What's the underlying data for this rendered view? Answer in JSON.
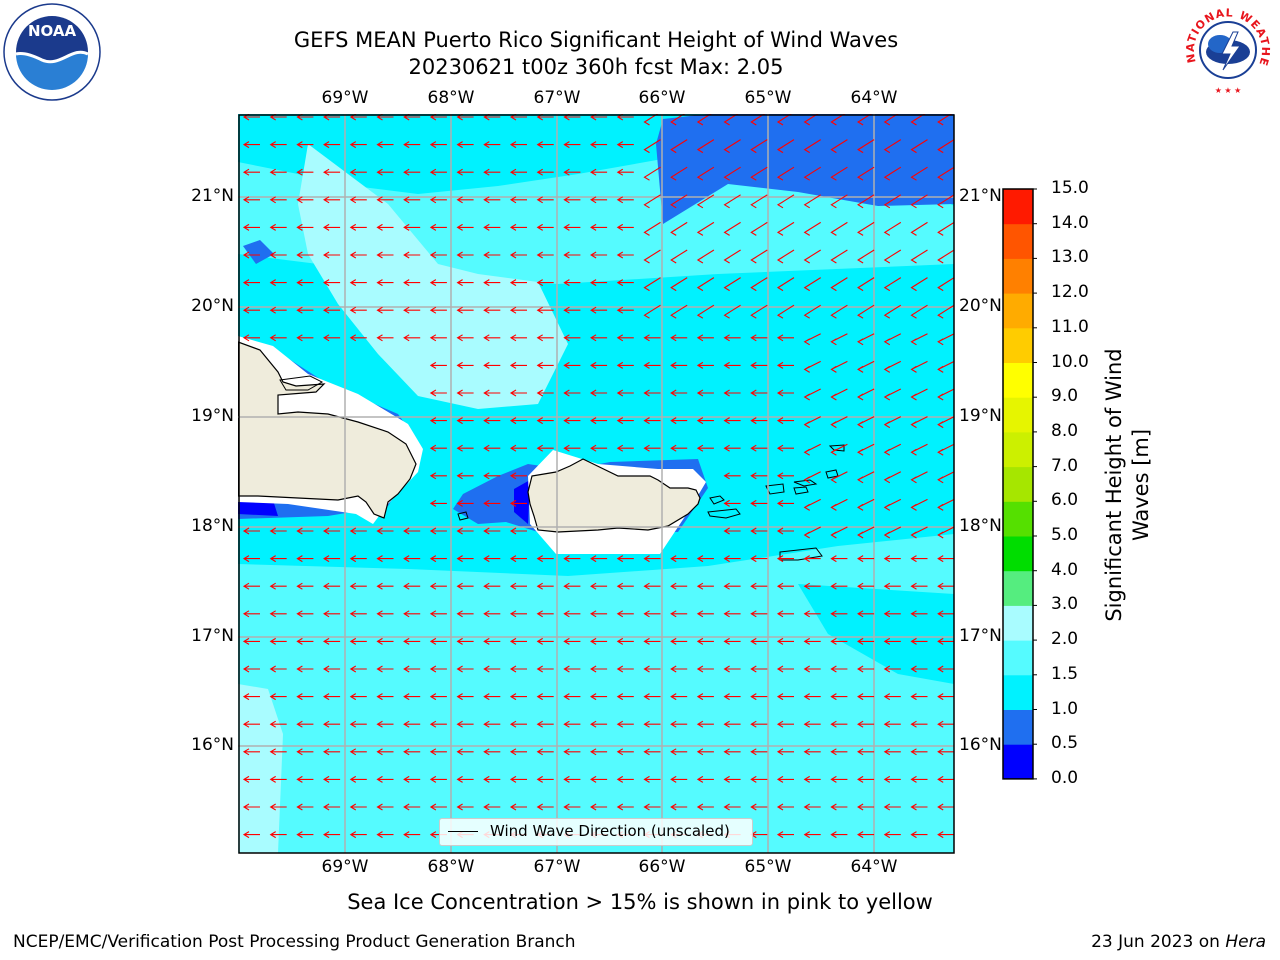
{
  "header": {
    "title_line1": "GEFS MEAN Puerto Rico Significant Height of Wind Waves",
    "title_line2": "20230621 t00z 360h fcst   Max: 2.05"
  },
  "logos": {
    "left": {
      "name": "NOAA",
      "ring_text": "NATIONAL OCEANIC AND ATMOSPHERIC ADMINISTRATION · U.S. DEPARTMENT OF COMMERCE"
    },
    "right": {
      "name": "NATIONAL WEATHER SERVICE"
    }
  },
  "map": {
    "lon_ticks": [
      "69°W",
      "68°W",
      "67°W",
      "66°W",
      "65°W",
      "64°W"
    ],
    "lat_ticks": [
      "21°N",
      "20°N",
      "19°N",
      "18°N",
      "17°N",
      "16°N"
    ],
    "arrow_color": "#ff0000",
    "land_color": "#efecdc",
    "legend_label": "Wind Wave Direction (unscaled)"
  },
  "colorbar": {
    "title_line1": "Significant Height of Wind",
    "title_line2": "Waves [m]",
    "levels": [
      "0.0",
      "0.5",
      "1.0",
      "1.5",
      "2.0",
      "3.0",
      "4.0",
      "5.0",
      "6.0",
      "7.0",
      "8.0",
      "9.0",
      "10.0",
      "11.0",
      "12.0",
      "13.0",
      "14.0",
      "15.0"
    ],
    "colors": [
      "#0000ff",
      "#1f6ff0",
      "#00f2ff",
      "#55fbff",
      "#a9fcff",
      "#55ed7f",
      "#00dd00",
      "#55e000",
      "#a6e600",
      "#ccf000",
      "#e6f500",
      "#ffff00",
      "#ffcc00",
      "#ffab00",
      "#ff8000",
      "#ff5500",
      "#ff1a00"
    ]
  },
  "footer": {
    "sea_ice_note": "Sea Ice Concentration > 15% is shown in pink to yellow",
    "branch": "NCEP/EMC/Verification Post Processing Product Generation Branch",
    "date_prefix": "23 Jun 2023 on ",
    "machine": "Hera"
  }
}
